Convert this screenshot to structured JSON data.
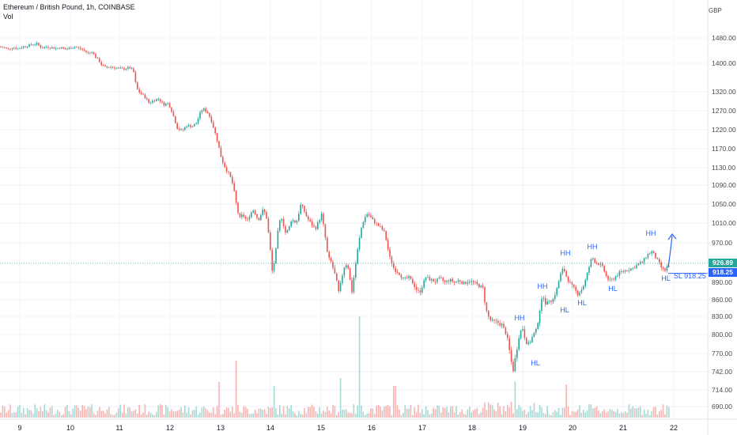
{
  "header": {
    "title": "Ethereum / British Pound, 1h, COINBASE",
    "sub": "Vol"
  },
  "currency_label": "GBP",
  "price_tag": "926.89",
  "sl_tag": "918.25",
  "sl_label": "SL  918.25",
  "colors": {
    "up": "#26a69a",
    "down": "#ef5350",
    "annotation": "#2962ff",
    "grid": "#f0f3fa"
  },
  "chart_data": {
    "type": "candlestick",
    "title": "Ethereum / British Pound, 1h, COINBASE",
    "currency": "GBP",
    "y_ticks": [
      "1480.00",
      "1400.00",
      "1320.00",
      "1270.00",
      "1220.00",
      "1170.00",
      "1130.00",
      "1090.00",
      "1050.00",
      "1010.00",
      "970.00",
      "926.89",
      "890.00",
      "860.00",
      "830.00",
      "800.00",
      "770.00",
      "742.00",
      "714.00",
      "690.00"
    ],
    "x_ticks": [
      "9",
      "10",
      "11",
      "12",
      "13",
      "14",
      "15",
      "16",
      "17",
      "18",
      "19",
      "20",
      "21",
      "22"
    ],
    "last_price": 926.89,
    "stop_loss": 918.25,
    "path": [
      [
        0,
        1452
      ],
      [
        6,
        1450
      ],
      [
        12,
        1445
      ],
      [
        18,
        1450
      ],
      [
        24,
        1446
      ],
      [
        30,
        1452
      ],
      [
        36,
        1455
      ],
      [
        42,
        1460
      ],
      [
        48,
        1462
      ],
      [
        54,
        1448
      ],
      [
        60,
        1452
      ],
      [
        66,
        1450
      ],
      [
        72,
        1447
      ],
      [
        78,
        1450
      ],
      [
        84,
        1444
      ],
      [
        90,
        1448
      ],
      [
        96,
        1452
      ],
      [
        102,
        1447
      ],
      [
        108,
        1440
      ],
      [
        114,
        1430
      ],
      [
        118,
        1438
      ],
      [
        122,
        1420
      ],
      [
        126,
        1410
      ],
      [
        130,
        1395
      ],
      [
        135,
        1388
      ],
      [
        142,
        1390
      ],
      [
        150,
        1386
      ],
      [
        158,
        1384
      ],
      [
        165,
        1388
      ],
      [
        170,
        1380
      ],
      [
        174,
        1330
      ],
      [
        178,
        1318
      ],
      [
        184,
        1308
      ],
      [
        190,
        1290
      ],
      [
        196,
        1298
      ],
      [
        202,
        1302
      ],
      [
        208,
        1286
      ],
      [
        214,
        1290
      ],
      [
        218,
        1272
      ],
      [
        222,
        1248
      ],
      [
        226,
        1222
      ],
      [
        232,
        1218
      ],
      [
        238,
        1232
      ],
      [
        244,
        1228
      ],
      [
        250,
        1238
      ],
      [
        254,
        1262
      ],
      [
        258,
        1276
      ],
      [
        264,
        1265
      ],
      [
        268,
        1248
      ],
      [
        272,
        1222
      ],
      [
        276,
        1192
      ],
      [
        280,
        1158
      ],
      [
        284,
        1138
      ],
      [
        288,
        1124
      ],
      [
        292,
        1112
      ],
      [
        296,
        1090
      ],
      [
        300,
        1052
      ],
      [
        304,
        1018
      ],
      [
        308,
        1028
      ],
      [
        314,
        1014
      ],
      [
        318,
        1030
      ],
      [
        322,
        1038
      ],
      [
        328,
        1016
      ],
      [
        334,
        1038
      ],
      [
        338,
        1026
      ],
      [
        342,
        975
      ],
      [
        346,
        905
      ],
      [
        350,
        950
      ],
      [
        354,
        1010
      ],
      [
        358,
        1022
      ],
      [
        362,
        990
      ],
      [
        366,
        996
      ],
      [
        370,
        1018
      ],
      [
        376,
        1010
      ],
      [
        382,
        1050
      ],
      [
        386,
        1036
      ],
      [
        390,
        1020
      ],
      [
        396,
        1006
      ],
      [
        400,
        998
      ],
      [
        404,
        1012
      ],
      [
        408,
        1028
      ],
      [
        412,
        990
      ],
      [
        416,
        940
      ],
      [
        420,
        930
      ],
      [
        426,
        900
      ],
      [
        430,
        870
      ],
      [
        434,
        902
      ],
      [
        438,
        928
      ],
      [
        442,
        918
      ],
      [
        446,
        870
      ],
      [
        450,
        912
      ],
      [
        454,
        960
      ],
      [
        458,
        998
      ],
      [
        462,
        1020
      ],
      [
        466,
        1030
      ],
      [
        470,
        1022
      ],
      [
        476,
        1010
      ],
      [
        482,
        1002
      ],
      [
        488,
        990
      ],
      [
        494,
        940
      ],
      [
        500,
        915
      ],
      [
        506,
        908
      ],
      [
        512,
        895
      ],
      [
        518,
        900
      ],
      [
        524,
        888
      ],
      [
        528,
        878
      ],
      [
        532,
        872
      ],
      [
        536,
        886
      ],
      [
        540,
        900
      ],
      [
        546,
        895
      ],
      [
        552,
        892
      ],
      [
        558,
        898
      ],
      [
        564,
        890
      ],
      [
        570,
        895
      ],
      [
        576,
        890
      ],
      [
        582,
        894
      ],
      [
        588,
        888
      ],
      [
        594,
        893
      ],
      [
        600,
        890
      ],
      [
        606,
        885
      ],
      [
        612,
        880
      ],
      [
        616,
        842
      ],
      [
        620,
        826
      ],
      [
        624,
        822
      ],
      [
        630,
        820
      ],
      [
        636,
        816
      ],
      [
        642,
        800
      ],
      [
        646,
        772
      ],
      [
        650,
        742
      ],
      [
        654,
        770
      ],
      [
        658,
        800
      ],
      [
        662,
        812
      ],
      [
        666,
        790
      ],
      [
        670,
        784
      ],
      [
        676,
        800
      ],
      [
        680,
        808
      ],
      [
        684,
        842
      ],
      [
        688,
        870
      ],
      [
        692,
        850
      ],
      [
        696,
        860
      ],
      [
        700,
        858
      ],
      [
        706,
        880
      ],
      [
        710,
        905
      ],
      [
        714,
        918
      ],
      [
        718,
        900
      ],
      [
        722,
        888
      ],
      [
        728,
        878
      ],
      [
        732,
        870
      ],
      [
        738,
        880
      ],
      [
        742,
        895
      ],
      [
        746,
        918
      ],
      [
        750,
        940
      ],
      [
        754,
        930
      ],
      [
        760,
        925
      ],
      [
        764,
        918
      ],
      [
        768,
        902
      ],
      [
        772,
        892
      ],
      [
        778,
        898
      ],
      [
        784,
        908
      ],
      [
        790,
        912
      ],
      [
        796,
        915
      ],
      [
        802,
        918
      ],
      [
        808,
        925
      ],
      [
        814,
        930
      ],
      [
        820,
        945
      ],
      [
        826,
        952
      ],
      [
        830,
        940
      ],
      [
        834,
        930
      ],
      [
        838,
        918
      ],
      [
        842,
        912
      ],
      [
        845,
        920
      ]
    ],
    "annotations": [
      {
        "text": "HH",
        "x_day": "18.9",
        "price": 835
      },
      {
        "text": "HL",
        "x_day": "18.9",
        "price": 745
      },
      {
        "text": "HH",
        "x_day": "19.4",
        "price": 885
      },
      {
        "text": "HL",
        "x_day": "19.4",
        "price": 838
      },
      {
        "text": "HH",
        "x_day": "19.8",
        "price": 935
      },
      {
        "text": "HL",
        "x_day": "20.1",
        "price": 865
      },
      {
        "text": "HH",
        "x_day": "20.4",
        "price": 945
      },
      {
        "text": "HL",
        "x_day": "20.6",
        "price": 880
      },
      {
        "text": "HH",
        "x_day": "21.2",
        "price": 978
      },
      {
        "text": "HL",
        "x_day": "21.3",
        "price": 893
      }
    ]
  }
}
